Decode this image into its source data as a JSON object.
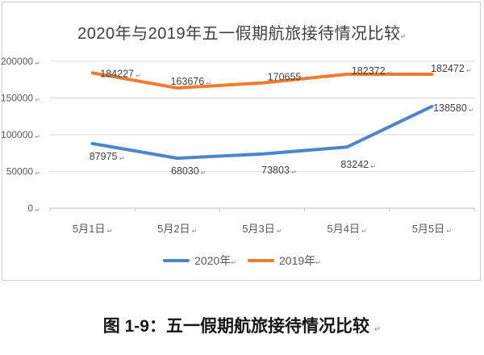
{
  "page": {
    "return_mark": "↵"
  },
  "chart_data": {
    "type": "line",
    "title": "2020年与2019年五一假期航旅接待情况比较",
    "categories": [
      "5月1日",
      "5月2日",
      "5月3日",
      "5月4日",
      "5月5日"
    ],
    "series": [
      {
        "name": "2020年",
        "color": "#4a86c8",
        "values": [
          87975,
          68030,
          73803,
          83242,
          138580
        ]
      },
      {
        "name": "2019年",
        "color": "#ed7d31",
        "values": [
          184227,
          163676,
          170655,
          182372,
          182472
        ]
      }
    ],
    "ylim": [
      0,
      200000
    ],
    "ytick_step": 50000,
    "yticks": [
      "0",
      "50000",
      "100000",
      "150000",
      "200000"
    ],
    "grid": true,
    "data_labels": true,
    "legend_position": "bottom"
  },
  "caption": {
    "text": "图 1-9：五一假期航旅接待情况比较"
  },
  "colors": {
    "gridline": "#d9d9d9",
    "axis": "#bfbfbf",
    "axis_text": "#595959",
    "data_label_text": "#404040",
    "title_text": "#3f3f3f",
    "frame_border": "#cfcfcf"
  }
}
